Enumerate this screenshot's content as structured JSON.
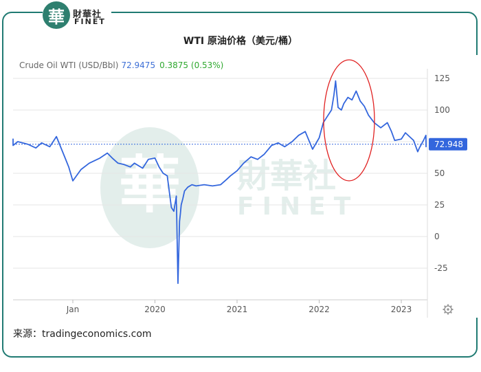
{
  "brand": {
    "logo_char": "華",
    "name_cn": "財華社",
    "name_en": "FINET"
  },
  "title": "WTI 原油价格（美元/桶）",
  "legend": {
    "series_name": "Crude Oil WTI (USD/Bbl)",
    "last_value": "72.9475",
    "change": "0.3875 (0.53%)"
  },
  "last_label": "72.948",
  "source": "来源：tradingeconomics.com",
  "colors": {
    "line": "#3366dd",
    "highlight": "#e02020",
    "frame": "#1f7a72",
    "up": "#2ea82e"
  },
  "chart_data": {
    "type": "line",
    "title": "WTI 原油价格（美元/桶）",
    "ylabel": "",
    "xlabel": "",
    "ylim": [
      -40,
      135
    ],
    "y_ticks": [
      125,
      100,
      75,
      50,
      25,
      0,
      -25
    ],
    "x_ticks": [
      "Jan",
      "2020",
      "2021",
      "2022",
      "2023"
    ],
    "x_tick_positions": [
      2019.0,
      2020.0,
      2021.0,
      2022.0,
      2023.0
    ],
    "last_value": 72.948,
    "highlight": "ellipse around 2022 peak",
    "series": [
      {
        "name": "Crude Oil WTI (USD/Bbl)",
        "x": [
          2017.95,
          2018.0,
          2018.08,
          2018.15,
          2018.2,
          2018.25,
          2018.33,
          2018.45,
          2018.55,
          2018.62,
          2018.72,
          2018.8,
          2018.85,
          2018.9,
          2018.95,
          2019.0,
          2019.1,
          2019.2,
          2019.33,
          2019.42,
          2019.48,
          2019.55,
          2019.62,
          2019.7,
          2019.75,
          2019.85,
          2019.92,
          2020.0,
          2020.05,
          2020.1,
          2020.15,
          2020.2,
          2020.23,
          2020.26,
          2020.28,
          2020.3,
          2020.31,
          2020.32,
          2020.34,
          2020.36,
          2020.4,
          2020.45,
          2020.5,
          2020.6,
          2020.7,
          2020.8,
          2020.87,
          2020.92,
          2021.0,
          2021.08,
          2021.17,
          2021.25,
          2021.33,
          2021.42,
          2021.5,
          2021.58,
          2021.67,
          2021.75,
          2021.83,
          2021.92,
          2022.0,
          2022.05,
          2022.1,
          2022.15,
          2022.18,
          2022.2,
          2022.23,
          2022.27,
          2022.3,
          2022.35,
          2022.4,
          2022.45,
          2022.5,
          2022.55,
          2022.6,
          2022.67,
          2022.75,
          2022.83,
          2022.88,
          2022.92,
          2023.0,
          2023.05,
          2023.1,
          2023.15,
          2023.2,
          2023.22,
          2023.27,
          2023.3,
          2023.33,
          2023.37,
          2023.42
        ],
        "values": [
          76,
          76,
          72,
          77,
          74,
          72,
          75,
          73,
          70,
          74,
          71,
          79,
          71,
          63,
          55,
          44,
          53,
          58,
          62,
          66,
          62,
          58,
          57,
          55,
          58,
          54,
          61,
          62,
          55,
          50,
          48,
          23,
          20,
          32,
          -37,
          12,
          18,
          25,
          30,
          36,
          39,
          41,
          40,
          41,
          40,
          41,
          45,
          48,
          52,
          58,
          63,
          61,
          65,
          72,
          74,
          71,
          75,
          80,
          83,
          69,
          78,
          90,
          95,
          100,
          112,
          123,
          102,
          100,
          105,
          110,
          108,
          115,
          107,
          103,
          96,
          90,
          86,
          90,
          83,
          76,
          77,
          82,
          79,
          76,
          67,
          70,
          76,
          80,
          74,
          71,
          72.9
        ]
      }
    ]
  }
}
